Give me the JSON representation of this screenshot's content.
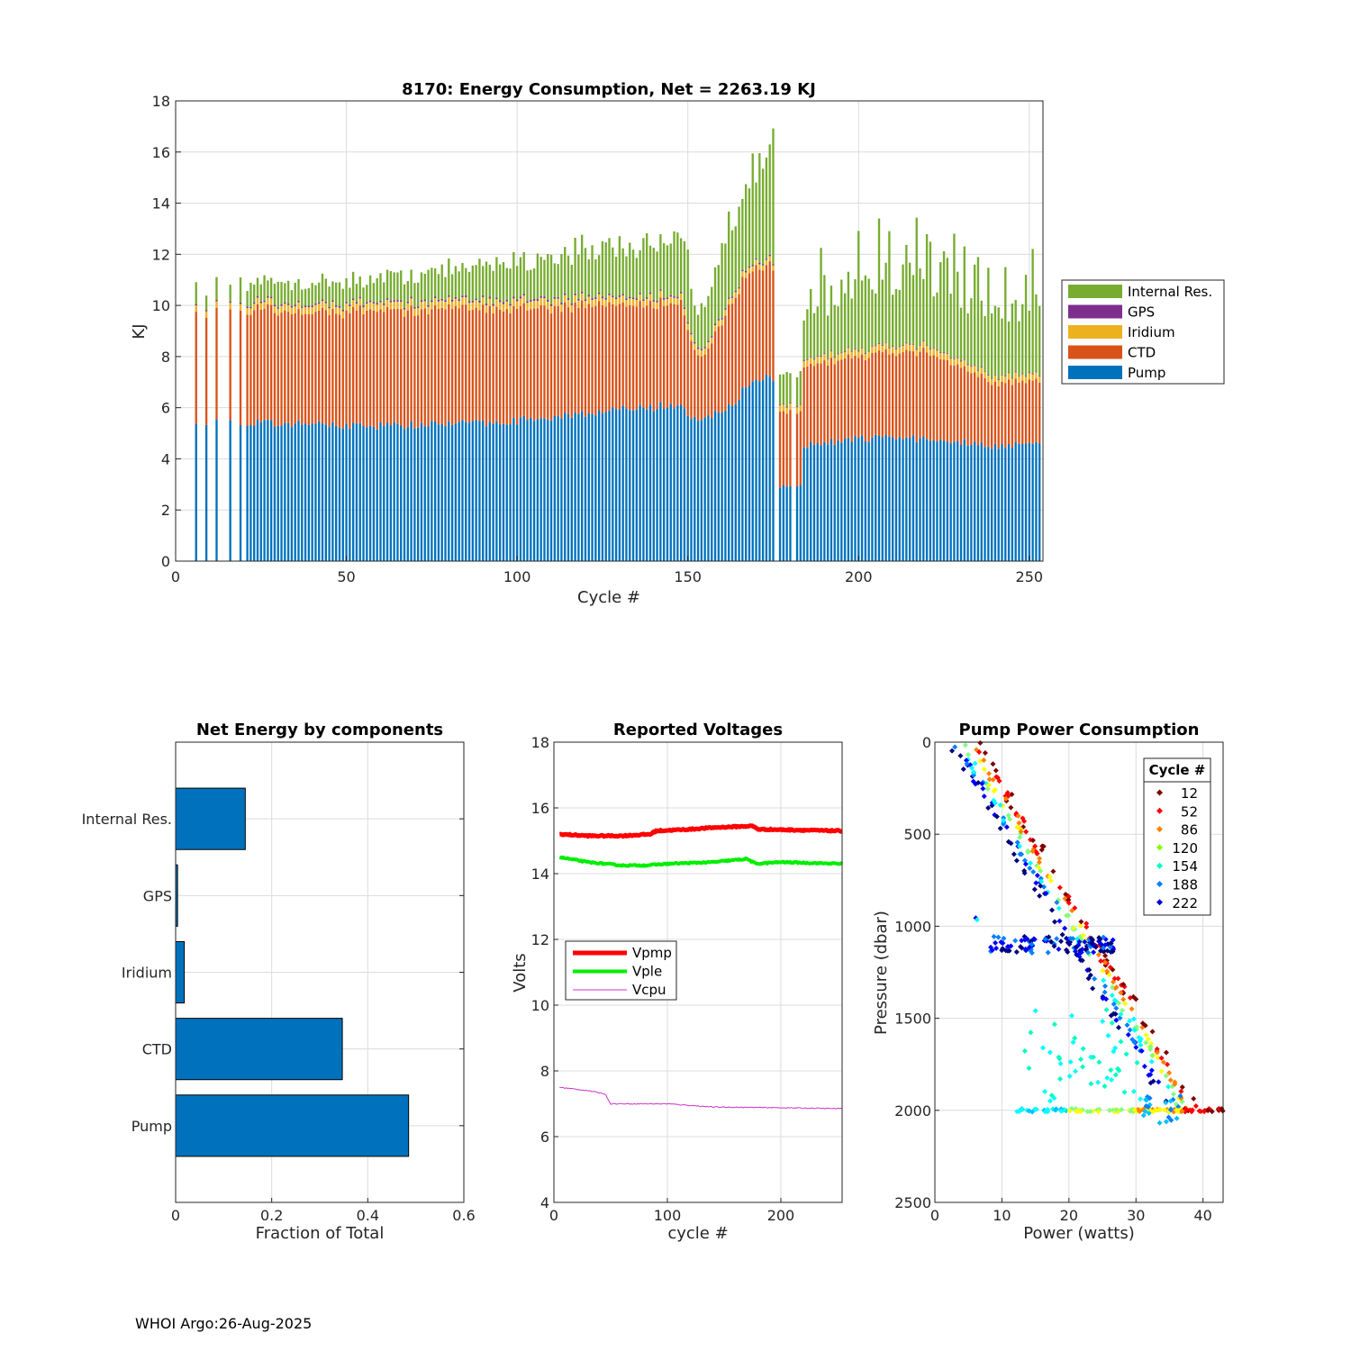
{
  "footer": "WHOI Argo:26-Aug-2025",
  "chart_data": [
    {
      "id": "energy",
      "type": "bar",
      "stacked": true,
      "title": "8170: Energy Consumption,  Net = 2263.19 KJ",
      "xlabel": "Cycle #",
      "ylabel": "KJ",
      "xlim": [
        0,
        254
      ],
      "ylim": [
        0,
        18
      ],
      "xticks": [
        0,
        50,
        100,
        150,
        200,
        250
      ],
      "yticks": [
        0,
        2,
        4,
        6,
        8,
        10,
        12,
        14,
        16,
        18
      ],
      "legend_position": "outside-right",
      "series_order": [
        "Pump",
        "CTD",
        "Iridium",
        "GPS",
        "Internal Res."
      ],
      "colors": {
        "Pump": "#0072BD",
        "CTD": "#D95319",
        "Iridium": "#EDB120",
        "GPS": "#7E2F8E",
        "Internal Res.": "#77AC30"
      },
      "keypoints": {
        "pump": [
          [
            6,
            5.5
          ],
          [
            20,
            5.4
          ],
          [
            40,
            5.35
          ],
          [
            60,
            5.3
          ],
          [
            80,
            5.35
          ],
          [
            100,
            5.5
          ],
          [
            120,
            5.8
          ],
          [
            140,
            6.0
          ],
          [
            148,
            6.2
          ],
          [
            152,
            5.5
          ],
          [
            155,
            5.6
          ],
          [
            160,
            5.8
          ],
          [
            164,
            6.2
          ],
          [
            168,
            7.0
          ],
          [
            174,
            7.4
          ],
          [
            175,
            7.2
          ],
          [
            177,
            2.9
          ],
          [
            183,
            2.9
          ],
          [
            184,
            4.5
          ],
          [
            200,
            4.8
          ],
          [
            220,
            4.8
          ],
          [
            240,
            4.5
          ],
          [
            254,
            4.7
          ]
        ],
        "ctd": [
          [
            6,
            4.3
          ],
          [
            20,
            4.4
          ],
          [
            40,
            4.4
          ],
          [
            60,
            4.5
          ],
          [
            80,
            4.5
          ],
          [
            100,
            4.4
          ],
          [
            120,
            4.2
          ],
          [
            140,
            4.0
          ],
          [
            148,
            4.0
          ],
          [
            152,
            2.7
          ],
          [
            155,
            2.4
          ],
          [
            160,
            3.5
          ],
          [
            164,
            4.2
          ],
          [
            168,
            4.4
          ],
          [
            175,
            4.4
          ],
          [
            177,
            2.9
          ],
          [
            183,
            2.9
          ],
          [
            184,
            3.1
          ],
          [
            200,
            3.2
          ],
          [
            220,
            3.4
          ],
          [
            240,
            2.5
          ],
          [
            254,
            2.4
          ]
        ],
        "iridium": [
          [
            6,
            0.25
          ],
          [
            100,
            0.3
          ],
          [
            150,
            0.25
          ],
          [
            175,
            0.2
          ],
          [
            177,
            0.25
          ],
          [
            254,
            0.25
          ]
        ],
        "gps": [
          [
            6,
            0.05
          ],
          [
            100,
            0.07
          ],
          [
            175,
            0.05
          ],
          [
            177,
            0.03
          ],
          [
            254,
            0.03
          ]
        ],
        "internal": [
          [
            6,
            0.7
          ],
          [
            20,
            0.8
          ],
          [
            40,
            0.8
          ],
          [
            60,
            0.9
          ],
          [
            80,
            1.2
          ],
          [
            100,
            1.5
          ],
          [
            120,
            1.8
          ],
          [
            140,
            2.1
          ],
          [
            150,
            2.5
          ],
          [
            152,
            1.5
          ],
          [
            155,
            1.4
          ],
          [
            160,
            2.5
          ],
          [
            164,
            3.2
          ],
          [
            168,
            3.8
          ],
          [
            175,
            4.3
          ],
          [
            177,
            1.0
          ],
          [
            183,
            1.3
          ],
          [
            184,
            2.0
          ],
          [
            200,
            2.5
          ],
          [
            220,
            2.6
          ],
          [
            240,
            2.3
          ],
          [
            254,
            2.6
          ]
        ]
      }
    },
    {
      "id": "components",
      "type": "bar",
      "orientation": "horizontal",
      "title": "Net Energy by components",
      "xlabel": "Fraction of Total",
      "categories": [
        "Pump",
        "CTD",
        "Iridium",
        "GPS",
        "Internal Res."
      ],
      "values": [
        0.485,
        0.347,
        0.018,
        0.004,
        0.145
      ],
      "xlim": [
        0,
        0.6
      ],
      "xticks": [
        0,
        0.2,
        0.4,
        0.6
      ],
      "color": "#0072BD"
    },
    {
      "id": "voltages",
      "type": "line",
      "title": "Reported Voltages",
      "xlabel": "cycle #",
      "ylabel": "Volts",
      "xlim": [
        0,
        254
      ],
      "ylim": [
        4,
        18
      ],
      "xticks": [
        0,
        100,
        200
      ],
      "yticks": [
        4,
        6,
        8,
        10,
        12,
        14,
        16,
        18
      ],
      "legend_position": "middle-left",
      "series": [
        {
          "name": "Vpmp",
          "color": "#FF0000",
          "width": 5,
          "points": [
            [
              5,
              15.2
            ],
            [
              30,
              15.15
            ],
            [
              60,
              15.15
            ],
            [
              85,
              15.2
            ],
            [
              90,
              15.3
            ],
            [
              120,
              15.35
            ],
            [
              140,
              15.4
            ],
            [
              175,
              15.45
            ],
            [
              180,
              15.35
            ],
            [
              254,
              15.3
            ]
          ]
        },
        {
          "name": "Vple",
          "color": "#00EE00",
          "width": 4,
          "points": [
            [
              5,
              14.5
            ],
            [
              30,
              14.35
            ],
            [
              60,
              14.25
            ],
            [
              80,
              14.25
            ],
            [
              100,
              14.3
            ],
            [
              140,
              14.35
            ],
            [
              170,
              14.45
            ],
            [
              178,
              14.3
            ],
            [
              200,
              14.35
            ],
            [
              254,
              14.3
            ]
          ]
        },
        {
          "name": "Vcpu",
          "color": "#CC33CC",
          "width": 1,
          "points": [
            [
              5,
              7.5
            ],
            [
              30,
              7.4
            ],
            [
              45,
              7.3
            ],
            [
              50,
              7.0
            ],
            [
              70,
              7.0
            ],
            [
              100,
              7.0
            ],
            [
              140,
              6.9
            ],
            [
              200,
              6.88
            ],
            [
              254,
              6.85
            ]
          ]
        }
      ]
    },
    {
      "id": "pump_power",
      "type": "scatter",
      "title": "Pump Power Consumption",
      "xlabel": "Power (watts)",
      "ylabel": "Pressure (dbar)",
      "xlim": [
        0,
        43
      ],
      "ylim": [
        2500,
        0
      ],
      "xticks": [
        0,
        10,
        20,
        30,
        40
      ],
      "yticks": [
        0,
        500,
        1000,
        1500,
        2000,
        2500
      ],
      "legend_title": "Cycle #",
      "legend_position": "top-right",
      "legend": [
        {
          "label": "12",
          "color": "#7F0000"
        },
        {
          "label": "52",
          "color": "#FF0000"
        },
        {
          "label": "86",
          "color": "#FF8000"
        },
        {
          "label": "120",
          "color": "#80FF00"
        },
        {
          "label": "154",
          "color": "#00FFC0"
        },
        {
          "label": "188",
          "color": "#0080FF"
        },
        {
          "label": "222",
          "color": "#0000DD"
        }
      ],
      "colormap": [
        "#00007F",
        "#0000FF",
        "#0080FF",
        "#00FFFF",
        "#80FF80",
        "#FFFF00",
        "#FF8000",
        "#FF0000",
        "#7F0000"
      ],
      "clusters": [
        {
          "desc": "main profile trend",
          "from": [
            4,
            0
          ],
          "to": [
            42,
            2000
          ],
          "n": 260
        },
        {
          "desc": "low power near 1000-1150 dbar",
          "from": [
            7,
            1000
          ],
          "to": [
            28,
            1150
          ],
          "n": 110
        },
        {
          "desc": "low power near 2000 dbar",
          "from": [
            12,
            2000
          ],
          "to": [
            43,
            2000
          ],
          "n": 120
        },
        {
          "desc": "scattered 1500-1900 dbar",
          "from": [
            13,
            1700
          ],
          "to": [
            30,
            1900
          ],
          "n": 50
        }
      ]
    }
  ]
}
